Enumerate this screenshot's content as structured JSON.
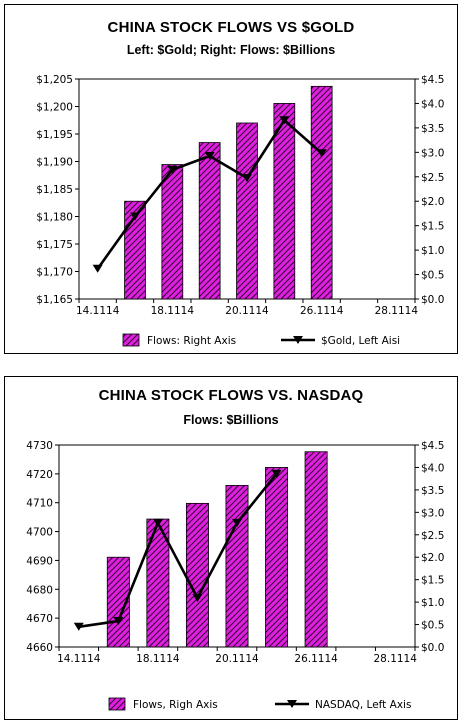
{
  "chart_data": [
    {
      "type": "bar",
      "title": "CHINA STOCK FLOWS VS $GOLD",
      "subtitle": "Left: $Gold; Right: Flows: $Billions",
      "x_tick_labels": [
        "14.1114",
        "18.1114",
        "20.1114",
        "26.1114",
        "28.1114"
      ],
      "left_axis": {
        "ylim": [
          1165,
          1205
        ],
        "ticks": [
          "$1,165",
          "$1,170",
          "$1,175",
          "$1,180",
          "$1,185",
          "$1,190",
          "$1,195",
          "$1,200",
          "$1,205"
        ]
      },
      "right_axis": {
        "ylim": [
          0,
          4.5
        ],
        "ticks": [
          "$0.0",
          "$0.5",
          "$1.0",
          "$1.5",
          "$2.0",
          "$2.5",
          "$3.0",
          "$3.5",
          "$4.0",
          "$4.5"
        ]
      },
      "series": [
        {
          "name": "Flows: Right Axis",
          "type": "bar",
          "axis": "right",
          "x": [
            2,
            3,
            4,
            5,
            6,
            7
          ],
          "values": [
            2.0,
            2.75,
            3.2,
            3.6,
            4.0,
            4.35
          ],
          "color": "#e020e0"
        },
        {
          "name": "$Gold, Left Aisi",
          "type": "line",
          "axis": "left",
          "x": [
            1,
            2,
            3,
            4,
            5,
            6,
            7
          ],
          "values": [
            1170.5,
            1180.0,
            1188.5,
            1191.0,
            1187.0,
            1197.5,
            1191.5
          ],
          "color": "#000000"
        }
      ],
      "legend": "bottom",
      "grid": false
    },
    {
      "type": "bar",
      "title": "CHINA STOCK FLOWS VS. NASDAQ",
      "subtitle": "Flows: $Billions",
      "x_tick_labels": [
        "14.1114",
        "18.1114",
        "20.1114",
        "26.1114",
        "28.1114"
      ],
      "left_axis": {
        "ylim": [
          4660,
          4730
        ],
        "ticks": [
          "4660",
          "4670",
          "4680",
          "4690",
          "4700",
          "4710",
          "4720",
          "4730"
        ]
      },
      "right_axis": {
        "ylim": [
          0,
          4.5
        ],
        "ticks": [
          "$0.0",
          "$0.5",
          "$1.0",
          "$1.5",
          "$2.0",
          "$2.5",
          "$3.0",
          "$3.5",
          "$4.0",
          "$4.5"
        ]
      },
      "series": [
        {
          "name": "Flows, Righ Axis",
          "type": "bar",
          "axis": "right",
          "x": [
            2,
            3,
            4,
            5,
            6,
            7
          ],
          "values": [
            2.0,
            2.85,
            3.2,
            3.6,
            4.0,
            4.35
          ],
          "color": "#e020e0"
        },
        {
          "name": "NASDAQ, Left Axis",
          "type": "line",
          "axis": "left",
          "x": [
            1,
            2,
            3,
            4,
            5,
            6
          ],
          "values": [
            4667,
            4669,
            4703,
            4677,
            4703,
            4720
          ],
          "color": "#000000"
        }
      ],
      "legend": "bottom",
      "grid": false
    }
  ]
}
